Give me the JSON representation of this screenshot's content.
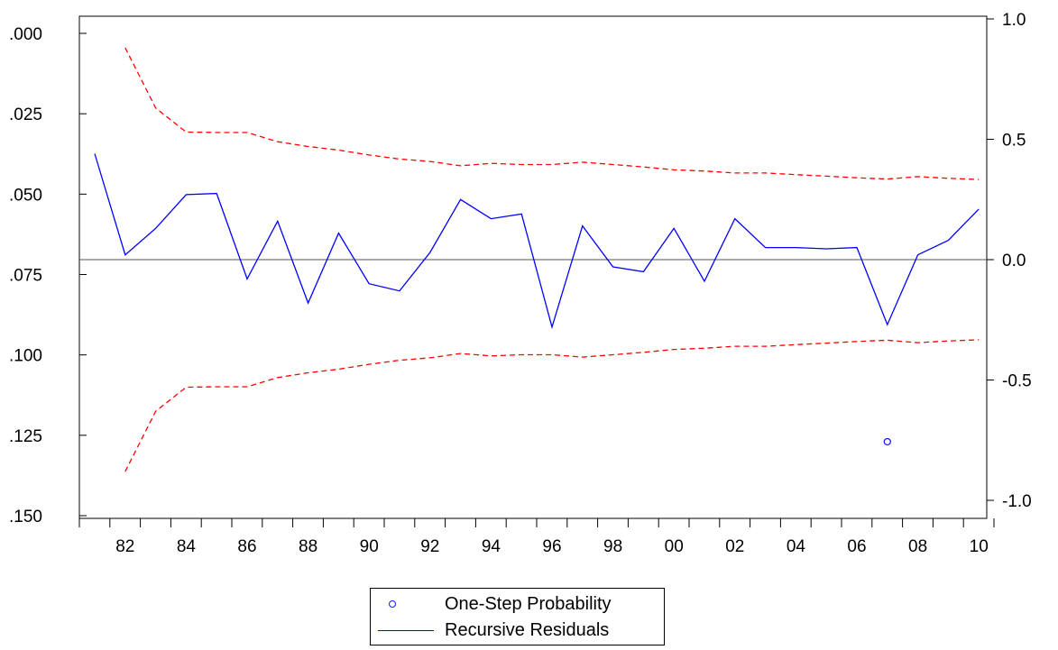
{
  "chart_data": {
    "type": "line",
    "x_labels": [
      "82",
      "84",
      "86",
      "88",
      "90",
      "92",
      "94",
      "96",
      "98",
      "00",
      "02",
      "04",
      "06",
      "08",
      "10"
    ],
    "x_range": [
      1981,
      2010
    ],
    "left_axis": {
      "range": [
        0.0,
        0.15
      ],
      "ticks": [
        ".000",
        ".025",
        ".050",
        ".075",
        ".100",
        ".125",
        ".150"
      ],
      "inverted": true
    },
    "right_axis": {
      "range": [
        -1.0,
        1.0
      ],
      "ticks": [
        "1.0",
        "0.5",
        "0.0",
        "-0.5",
        "-1.0"
      ]
    },
    "zero_line": 0.0,
    "series": [
      {
        "name": "Recursive Residuals",
        "axis": "right",
        "color": "#0000ff",
        "style": "solid",
        "x": [
          1981,
          1982,
          1983,
          1984,
          1985,
          1986,
          1987,
          1988,
          1989,
          1990,
          1991,
          1992,
          1993,
          1994,
          1995,
          1996,
          1997,
          1998,
          1999,
          2000,
          2001,
          2002,
          2003,
          2004,
          2005,
          2006,
          2007,
          2008,
          2009,
          2010
        ],
        "y": [
          0.44,
          0.02,
          0.13,
          0.27,
          0.275,
          -0.08,
          0.16,
          -0.18,
          0.11,
          -0.1,
          -0.13,
          0.03,
          0.25,
          0.17,
          0.19,
          -0.28,
          0.14,
          -0.03,
          -0.05,
          0.13,
          -0.09,
          0.17,
          0.05,
          0.05,
          0.045,
          0.05,
          -0.27,
          0.02,
          0.08,
          0.21
        ]
      },
      {
        "name": "",
        "axis": "right",
        "color": "#ff0000",
        "style": "dashed",
        "x": [
          1982,
          1983,
          1984,
          1985,
          1986,
          1987,
          1988,
          1989,
          1990,
          1991,
          1992,
          1993,
          1994,
          1995,
          1996,
          1997,
          1998,
          1999,
          2000,
          2001,
          2002,
          2003,
          2004,
          2005,
          2006,
          2007,
          2008,
          2009,
          2010
        ],
        "y": [
          0.88,
          0.63,
          0.53,
          0.528,
          0.528,
          0.49,
          0.47,
          0.455,
          0.435,
          0.418,
          0.408,
          0.39,
          0.4,
          0.395,
          0.395,
          0.405,
          0.395,
          0.385,
          0.373,
          0.368,
          0.36,
          0.36,
          0.353,
          0.347,
          0.34,
          0.335,
          0.345,
          0.338,
          0.333
        ]
      },
      {
        "name": "",
        "axis": "right",
        "color": "#ff0000",
        "style": "dashed",
        "x": [
          1982,
          1983,
          1984,
          1985,
          1986,
          1987,
          1988,
          1989,
          1990,
          1991,
          1992,
          1993,
          1994,
          1995,
          1996,
          1997,
          1998,
          1999,
          2000,
          2001,
          2002,
          2003,
          2004,
          2005,
          2006,
          2007,
          2008,
          2009,
          2010
        ],
        "y": [
          -0.88,
          -0.63,
          -0.53,
          -0.528,
          -0.528,
          -0.49,
          -0.47,
          -0.455,
          -0.435,
          -0.418,
          -0.408,
          -0.39,
          -0.4,
          -0.395,
          -0.395,
          -0.405,
          -0.395,
          -0.385,
          -0.373,
          -0.368,
          -0.36,
          -0.36,
          -0.353,
          -0.347,
          -0.34,
          -0.335,
          -0.345,
          -0.338,
          -0.333
        ]
      },
      {
        "name": "One-Step Probability",
        "axis": "left",
        "color": "#1a1aff",
        "style": "marker-circle",
        "x": [
          2007
        ],
        "y": [
          0.127
        ]
      }
    ],
    "legend": {
      "position": "bottom-center",
      "entries": [
        "One-Step Probability",
        "Recursive Residuals"
      ]
    },
    "grid": false
  }
}
